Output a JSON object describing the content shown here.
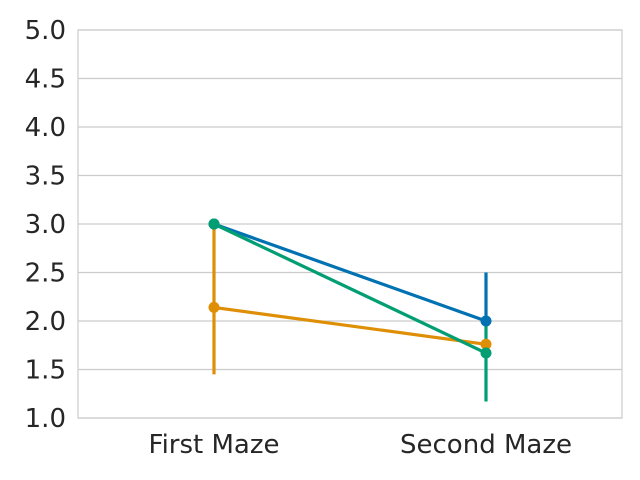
{
  "chart_data": {
    "type": "line",
    "title": "",
    "xlabel": "",
    "ylabel": "",
    "categories": [
      "First Maze",
      "Second Maze"
    ],
    "ylim": [
      1.0,
      5.0
    ],
    "yticks": [
      "1.0",
      "1.5",
      "2.0",
      "2.5",
      "3.0",
      "3.5",
      "4.0",
      "4.5",
      "5.0"
    ],
    "grid": "horizontal",
    "legend": "none",
    "series": [
      {
        "color": "#0072b2",
        "values": [
          3.0,
          2.0
        ],
        "error_low": [
          3.0,
          2.0
        ],
        "error_high": [
          3.0,
          2.5
        ]
      },
      {
        "color": "#de8f05",
        "values": [
          2.14,
          1.76
        ],
        "error_low": [
          1.45,
          1.76
        ],
        "error_high": [
          3.0,
          1.76
        ]
      },
      {
        "color": "#029e73",
        "values": [
          3.0,
          1.67
        ],
        "error_low": [
          3.0,
          1.17
        ],
        "error_high": [
          3.0,
          2.0
        ]
      }
    ]
  }
}
